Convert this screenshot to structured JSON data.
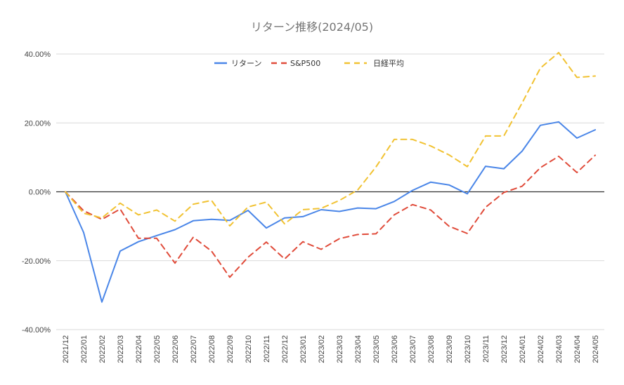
{
  "chart_data": {
    "type": "line",
    "title": "リターン推移(2024/05)",
    "xlabel": "",
    "ylabel": "",
    "ylim": [
      -40,
      40
    ],
    "yticks": [
      40,
      20,
      0,
      -20,
      -40
    ],
    "ytick_labels": [
      "40.00%",
      "20.00%",
      "0.00%",
      "-20.00%",
      "-40.00%"
    ],
    "grid": true,
    "legend_position": "top",
    "categories": [
      "2021/12",
      "2022/01",
      "2022/02",
      "2022/03",
      "2022/04",
      "2022/05",
      "2022/06",
      "2022/07",
      "2022/08",
      "2022/09",
      "2022/10",
      "2022/11",
      "2022/12",
      "2023/01",
      "2023/02",
      "2023/03",
      "2023/04",
      "2023/05",
      "2023/06",
      "2023/07",
      "2023/08",
      "2023/09",
      "2023/10",
      "2023/11",
      "2023/12",
      "2024/01",
      "2024/02",
      "2024/03",
      "2024/04",
      "2024/05"
    ],
    "series": [
      {
        "name": "リターン",
        "color": "#4a86e8",
        "dash": "solid",
        "values": [
          0,
          -11.8,
          -32,
          -17.2,
          -14.5,
          -12.7,
          -11.0,
          -8.4,
          -8.0,
          -8.3,
          -5.4,
          -10.5,
          -7.6,
          -7.2,
          -5.2,
          -5.7,
          -4.7,
          -4.9,
          -2.8,
          0.4,
          2.8,
          2.0,
          -0.6,
          7.4,
          6.7,
          11.8,
          19.3,
          20.3,
          15.6,
          18.0
        ]
      },
      {
        "name": "S&P500",
        "color": "#e04b3a",
        "dash": "dashed",
        "values": [
          0,
          -5.5,
          -8.0,
          -5.0,
          -13.5,
          -13.5,
          -20.7,
          -13.2,
          -17.2,
          -24.8,
          -19.0,
          -14.6,
          -19.5,
          -14.5,
          -16.7,
          -13.6,
          -12.4,
          -12.2,
          -6.7,
          -3.7,
          -5.3,
          -10.0,
          -12.1,
          -4.5,
          -0.2,
          1.6,
          7.0,
          10.3,
          5.6,
          10.6
        ]
      },
      {
        "name": "日経平均",
        "color": "#f1c232",
        "dash": "dashed",
        "values": [
          0,
          -6.2,
          -7.6,
          -3.3,
          -6.7,
          -5.3,
          -8.5,
          -3.6,
          -2.5,
          -9.9,
          -4.4,
          -3.0,
          -9.3,
          -5.2,
          -4.8,
          -2.5,
          0.5,
          7.2,
          15.2,
          15.2,
          13.3,
          10.7,
          7.3,
          16.2,
          16.2,
          25.8,
          35.9,
          40.4,
          33.2,
          33.6
        ]
      }
    ]
  }
}
